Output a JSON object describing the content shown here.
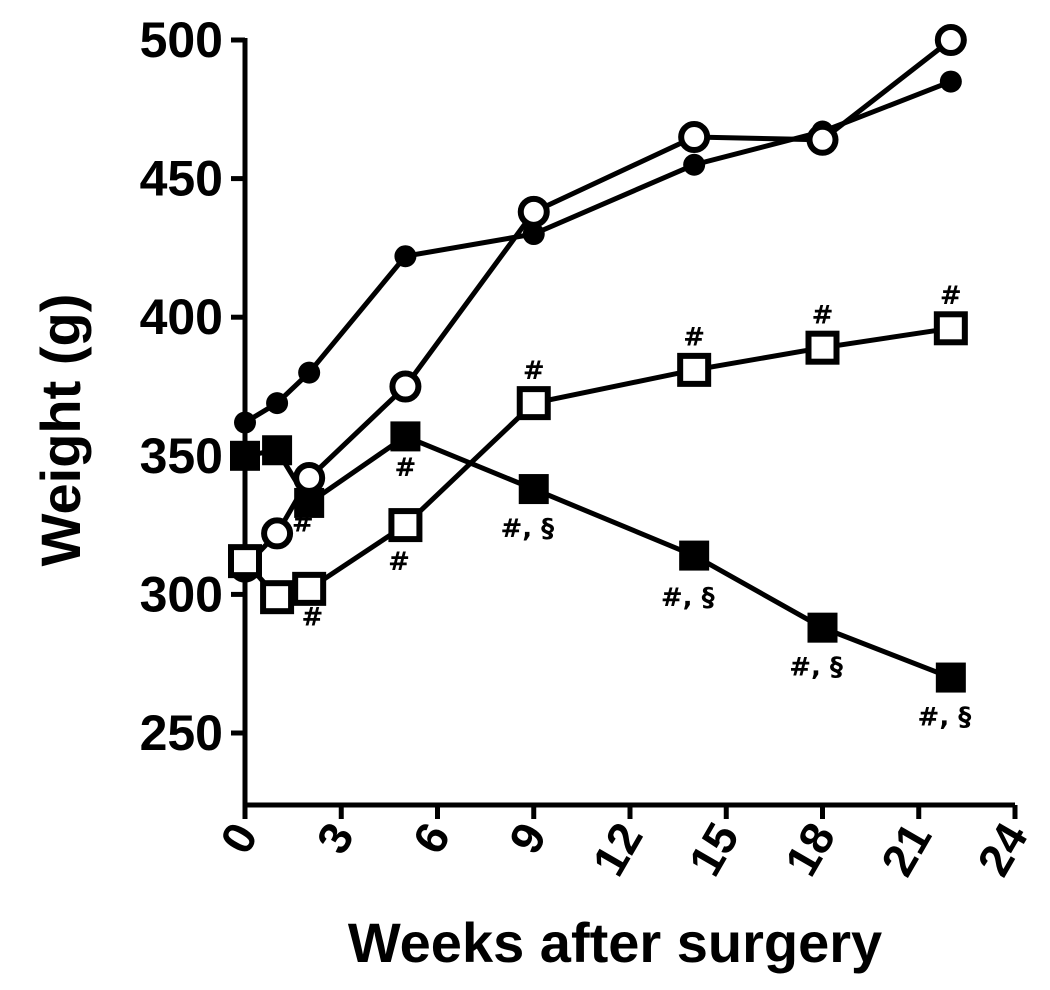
{
  "chart_data": {
    "type": "line",
    "xlabel": "Weeks after surgery",
    "ylabel": "Weight (g)",
    "xlim": [
      0,
      24
    ],
    "ylim": [
      220,
      500
    ],
    "xticks": [
      "0",
      "3",
      "6",
      "9",
      "12",
      "15",
      "18",
      "21",
      "24"
    ],
    "yticks": [
      "250",
      "300",
      "350",
      "400",
      "450",
      "500"
    ],
    "grid": false,
    "series": [
      {
        "marker": "filled-circle",
        "points": [
          [
            0,
            362
          ],
          [
            1,
            369
          ],
          [
            2,
            380
          ],
          [
            5,
            422
          ],
          [
            9,
            430
          ],
          [
            14,
            455
          ],
          [
            18,
            467
          ],
          [
            22,
            485
          ]
        ]
      },
      {
        "marker": "open-circle",
        "points": [
          [
            0,
            310
          ],
          [
            1,
            322
          ],
          [
            2,
            342
          ],
          [
            5,
            375
          ],
          [
            9,
            438
          ],
          [
            14,
            465
          ],
          [
            18,
            464
          ],
          [
            22,
            500
          ]
        ]
      },
      {
        "marker": "filled-square",
        "points": [
          [
            0,
            350
          ],
          [
            1,
            352
          ],
          [
            2,
            333
          ],
          [
            5,
            357
          ],
          [
            9,
            338
          ],
          [
            14,
            314
          ],
          [
            18,
            288
          ],
          [
            22,
            270
          ]
        ]
      },
      {
        "marker": "open-square",
        "points": [
          [
            0,
            312
          ],
          [
            1,
            299
          ],
          [
            2,
            302
          ],
          [
            5,
            325
          ],
          [
            9,
            369
          ],
          [
            14,
            381
          ],
          [
            18,
            389
          ],
          [
            22,
            396
          ]
        ]
      }
    ],
    "annotations": [
      {
        "text": "#",
        "x": 2.1,
        "y": 292
      },
      {
        "text": "#",
        "x": 1.8,
        "y": 326
      },
      {
        "text": "#",
        "x": 5.0,
        "y": 346
      },
      {
        "text": "#",
        "x": 4.8,
        "y": 312
      },
      {
        "text": "#",
        "x": 9.0,
        "y": 381
      },
      {
        "text": "#, §",
        "x": 8.8,
        "y": 324
      },
      {
        "text": "#",
        "x": 14.0,
        "y": 393
      },
      {
        "text": "#, §",
        "x": 13.8,
        "y": 299
      },
      {
        "text": "#",
        "x": 18.0,
        "y": 401
      },
      {
        "text": "#, §",
        "x": 17.8,
        "y": 274
      },
      {
        "text": "#",
        "x": 22.0,
        "y": 408
      },
      {
        "text": "#, §",
        "x": 21.8,
        "y": 256
      }
    ]
  }
}
